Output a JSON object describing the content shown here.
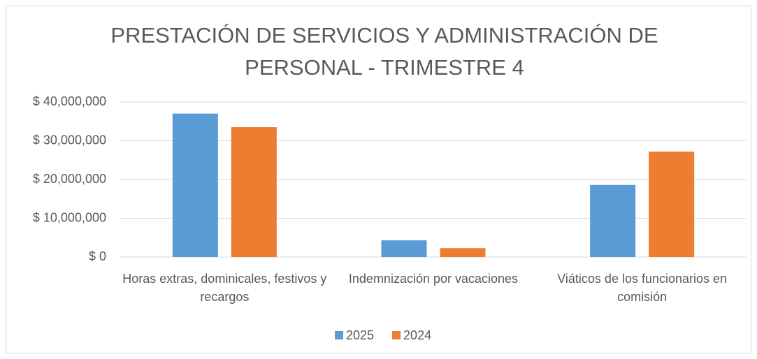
{
  "chart_data": {
    "type": "bar",
    "title": "PRESTACIÓN DE SERVICIOS Y ADMINISTRACIÓN DE PERSONAL - TRIMESTRE 4",
    "categories": [
      "Horas extras, dominicales, festivos y recargos",
      "Indemnización por vacaciones",
      "Viáticos de los funcionarios en comisión"
    ],
    "series": [
      {
        "name": "2025",
        "color": "#5b9bd5",
        "values": [
          37000000,
          4300000,
          18600000
        ]
      },
      {
        "name": "2024",
        "color": "#ed7d31",
        "values": [
          33500000,
          2300000,
          27200000
        ]
      }
    ],
    "ylim": [
      0,
      40000000
    ],
    "yticks": [
      {
        "value": 0,
        "label": "$ 0"
      },
      {
        "value": 10000000,
        "label": "$ 10,000,000"
      },
      {
        "value": 20000000,
        "label": "$ 20,000,000"
      },
      {
        "value": 30000000,
        "label": "$ 30,000,000"
      },
      {
        "value": 40000000,
        "label": "$ 40,000,000"
      }
    ],
    "grid": true,
    "legend": "bottom"
  }
}
